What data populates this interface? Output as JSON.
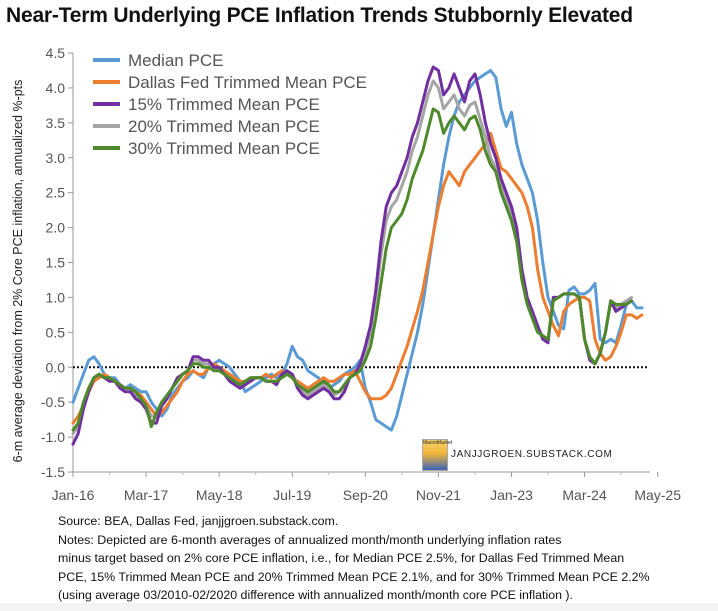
{
  "title": "Near-Term Underlying PCE Inflation Trends Stubbornly Elevated",
  "watermark": {
    "text": "JANJJGROEN.SUBSTACK.COM",
    "logo_text": "MacroMarket"
  },
  "notes": [
    "Source: BEA, Dallas Fed, janjjgroen.substack.com.",
    "Notes: Depicted are 6-month averages of annualized month/month underlying inflation rates",
    "minus target based on 2% core PCE inflation, i.e., for Median PCE 2.5%, for Dallas Fed Trimmed Mean",
    "PCE, 15% Trimmed Mean PCE and 20% Trimmed Mean PCE 2.1%, and for 30% Trimmed Mean PCE 2.2%",
    "(using average 03/2010-02/2020 difference with annualized month/month core PCE inflation )."
  ],
  "chart_data": {
    "type": "line",
    "title": "Near-Term Underlying PCE Inflation Trends Stubbornly Elevated",
    "ylabel": "6-m average deviation from 2% Core PCE inflation, annualized %-pts",
    "xlabel": "",
    "ylim": [
      -1.5,
      4.5
    ],
    "yticks": [
      "-1.5",
      "-1.0",
      "-0.5",
      "0.0",
      "0.5",
      "1.0",
      "1.5",
      "2.0",
      "2.5",
      "3.0",
      "3.5",
      "4.0",
      "4.5"
    ],
    "x_tick_labels": [
      "Jan-16",
      "Mar-17",
      "May-18",
      "Jul-19",
      "Sep-20",
      "Nov-21",
      "Jan-23",
      "Mar-24",
      "May-25"
    ],
    "x_range": [
      "Jan-16",
      "Jul-25"
    ],
    "reference_line": {
      "y": 0,
      "style": "dotted"
    },
    "grid": false,
    "legend_position": "top-left",
    "series": [
      {
        "name": "Median PCE",
        "color": "#5b9bd5",
        "values": [
          -0.5,
          -0.3,
          -0.1,
          0.1,
          0.15,
          0.05,
          -0.1,
          -0.15,
          -0.15,
          -0.25,
          -0.3,
          -0.25,
          -0.3,
          -0.35,
          -0.35,
          -0.5,
          -0.6,
          -0.7,
          -0.6,
          -0.4,
          -0.3,
          -0.2,
          -0.15,
          -0.05,
          -0.1,
          -0.15,
          0.0,
          0.05,
          0.1,
          0.05,
          0.0,
          -0.1,
          -0.2,
          -0.35,
          -0.3,
          -0.25,
          -0.2,
          -0.15,
          -0.1,
          -0.15,
          -0.1,
          0.05,
          0.3,
          0.15,
          0.1,
          -0.05,
          -0.1,
          -0.15,
          -0.25,
          -0.3,
          -0.25,
          -0.2,
          -0.1,
          -0.05,
          0.0,
          0.1,
          -0.3,
          -0.5,
          -0.75,
          -0.8,
          -0.85,
          -0.9,
          -0.7,
          -0.4,
          -0.1,
          0.2,
          0.5,
          0.9,
          1.4,
          1.9,
          2.4,
          2.9,
          3.3,
          3.6,
          3.8,
          3.9,
          4.0,
          4.1,
          4.15,
          4.2,
          4.25,
          4.15,
          3.7,
          3.45,
          3.65,
          3.2,
          2.9,
          2.7,
          2.5,
          2.1,
          1.5,
          1.0,
          0.8,
          0.6,
          0.55,
          1.1,
          1.15,
          1.05,
          1.05,
          1.1,
          1.2,
          0.4,
          0.35,
          0.4,
          0.35,
          0.6,
          0.9,
          0.95,
          0.85,
          0.85
        ]
      },
      {
        "name": "Dallas Fed Trimmed Mean PCE",
        "color": "#ed7d31",
        "values": [
          -0.8,
          -0.7,
          -0.55,
          -0.35,
          -0.2,
          -0.15,
          -0.1,
          -0.15,
          -0.2,
          -0.25,
          -0.3,
          -0.3,
          -0.35,
          -0.4,
          -0.5,
          -0.6,
          -0.7,
          -0.65,
          -0.55,
          -0.45,
          -0.35,
          -0.2,
          -0.1,
          -0.05,
          -0.1,
          -0.1,
          0.0,
          0.05,
          0.0,
          -0.05,
          -0.1,
          -0.15,
          -0.2,
          -0.2,
          -0.15,
          -0.15,
          -0.15,
          -0.1,
          -0.15,
          -0.1,
          -0.05,
          -0.1,
          -0.15,
          -0.2,
          -0.25,
          -0.3,
          -0.25,
          -0.2,
          -0.15,
          -0.2,
          -0.2,
          -0.15,
          -0.1,
          -0.1,
          -0.05,
          -0.2,
          -0.35,
          -0.45,
          -0.45,
          -0.45,
          -0.4,
          -0.3,
          -0.1,
          0.1,
          0.3,
          0.55,
          0.8,
          1.1,
          1.5,
          1.9,
          2.3,
          2.6,
          2.8,
          2.7,
          2.6,
          2.8,
          2.9,
          3.0,
          3.1,
          3.2,
          3.35,
          3.1,
          2.85,
          2.8,
          2.7,
          2.6,
          2.5,
          2.3,
          2.0,
          1.4,
          1.0,
          0.8,
          0.6,
          0.45,
          0.8,
          0.9,
          0.95,
          1.0,
          1.0,
          0.95,
          0.4,
          0.2,
          0.1,
          0.15,
          0.3,
          0.5,
          0.75,
          0.75,
          0.7,
          0.75
        ]
      },
      {
        "name": "15% Trimmed Mean PCE",
        "color": "#7030a0",
        "values": [
          -1.1,
          -0.95,
          -0.6,
          -0.35,
          -0.15,
          -0.1,
          -0.15,
          -0.2,
          -0.2,
          -0.3,
          -0.35,
          -0.35,
          -0.45,
          -0.5,
          -0.6,
          -0.8,
          -0.8,
          -0.55,
          -0.45,
          -0.3,
          -0.15,
          -0.1,
          -0.05,
          0.15,
          0.15,
          0.1,
          0.1,
          0.0,
          0.0,
          -0.1,
          -0.2,
          -0.25,
          -0.3,
          -0.25,
          -0.2,
          -0.15,
          -0.15,
          -0.2,
          -0.2,
          -0.25,
          -0.1,
          -0.05,
          -0.1,
          -0.3,
          -0.4,
          -0.45,
          -0.4,
          -0.35,
          -0.3,
          -0.35,
          -0.45,
          -0.45,
          -0.35,
          -0.15,
          -0.1,
          0.05,
          0.3,
          0.6,
          1.1,
          1.8,
          2.3,
          2.5,
          2.6,
          2.8,
          3.0,
          3.3,
          3.5,
          3.8,
          4.1,
          4.3,
          4.25,
          3.9,
          4.0,
          4.2,
          4.0,
          3.8,
          4.1,
          4.2,
          3.9,
          3.5,
          3.2,
          3.0,
          2.7,
          2.5,
          2.3,
          2.0,
          1.4,
          1.0,
          0.8,
          0.6,
          0.4,
          0.35,
          1.0,
          1.0,
          1.05,
          1.05,
          1.05,
          1.0,
          0.4,
          0.1,
          0.05,
          0.2,
          0.5,
          0.95,
          0.8,
          0.85,
          0.9,
          0.95
        ]
      },
      {
        "name": "20% Trimmed Mean PCE",
        "color": "#a5a5a5",
        "values": [
          -0.95,
          -0.85,
          -0.55,
          -0.3,
          -0.15,
          -0.1,
          -0.15,
          -0.15,
          -0.2,
          -0.25,
          -0.3,
          -0.3,
          -0.4,
          -0.45,
          -0.55,
          -0.7,
          -0.7,
          -0.55,
          -0.45,
          -0.3,
          -0.2,
          -0.1,
          -0.05,
          0.1,
          0.1,
          0.05,
          0.05,
          0.0,
          -0.05,
          -0.1,
          -0.15,
          -0.2,
          -0.25,
          -0.2,
          -0.15,
          -0.15,
          -0.15,
          -0.2,
          -0.2,
          -0.2,
          -0.1,
          -0.05,
          -0.1,
          -0.25,
          -0.35,
          -0.4,
          -0.35,
          -0.3,
          -0.25,
          -0.3,
          -0.4,
          -0.35,
          -0.3,
          -0.15,
          -0.1,
          0.0,
          0.2,
          0.5,
          1.0,
          1.6,
          2.1,
          2.3,
          2.4,
          2.6,
          2.8,
          3.1,
          3.3,
          3.6,
          3.9,
          4.1,
          4.0,
          3.7,
          3.8,
          3.9,
          3.7,
          3.6,
          3.75,
          3.8,
          3.55,
          3.3,
          3.0,
          2.85,
          2.6,
          2.4,
          2.2,
          1.9,
          1.3,
          0.95,
          0.75,
          0.55,
          0.45,
          0.4,
          1.0,
          1.0,
          1.05,
          1.05,
          1.05,
          1.0,
          0.4,
          0.15,
          0.05,
          0.2,
          0.5,
          0.95,
          0.85,
          0.9,
          0.95,
          1.0
        ]
      },
      {
        "name": "30% Trimmed Mean PCE",
        "color": "#4e8a2c",
        "values": [
          -0.9,
          -0.8,
          -0.5,
          -0.3,
          -0.15,
          -0.1,
          -0.15,
          -0.15,
          -0.2,
          -0.25,
          -0.3,
          -0.3,
          -0.35,
          -0.45,
          -0.55,
          -0.85,
          -0.65,
          -0.5,
          -0.4,
          -0.3,
          -0.2,
          -0.1,
          -0.05,
          0.05,
          0.05,
          0.0,
          0.0,
          -0.05,
          -0.05,
          -0.1,
          -0.15,
          -0.2,
          -0.25,
          -0.2,
          -0.15,
          -0.15,
          -0.15,
          -0.2,
          -0.2,
          -0.2,
          -0.15,
          -0.1,
          -0.15,
          -0.25,
          -0.3,
          -0.35,
          -0.3,
          -0.25,
          -0.2,
          -0.25,
          -0.35,
          -0.35,
          -0.25,
          -0.15,
          -0.1,
          -0.05,
          0.1,
          0.3,
          0.7,
          1.2,
          1.7,
          2.0,
          2.1,
          2.2,
          2.4,
          2.7,
          2.9,
          3.1,
          3.4,
          3.7,
          3.65,
          3.35,
          3.5,
          3.6,
          3.5,
          3.4,
          3.55,
          3.6,
          3.4,
          3.1,
          2.9,
          2.8,
          2.5,
          2.3,
          2.1,
          1.8,
          1.25,
          0.9,
          0.7,
          0.5,
          0.45,
          0.4,
          0.95,
          1.0,
          1.05,
          1.05,
          1.05,
          1.0,
          0.4,
          0.15,
          0.05,
          0.2,
          0.5,
          0.95,
          0.9,
          0.9,
          0.9,
          0.95
        ]
      }
    ]
  }
}
